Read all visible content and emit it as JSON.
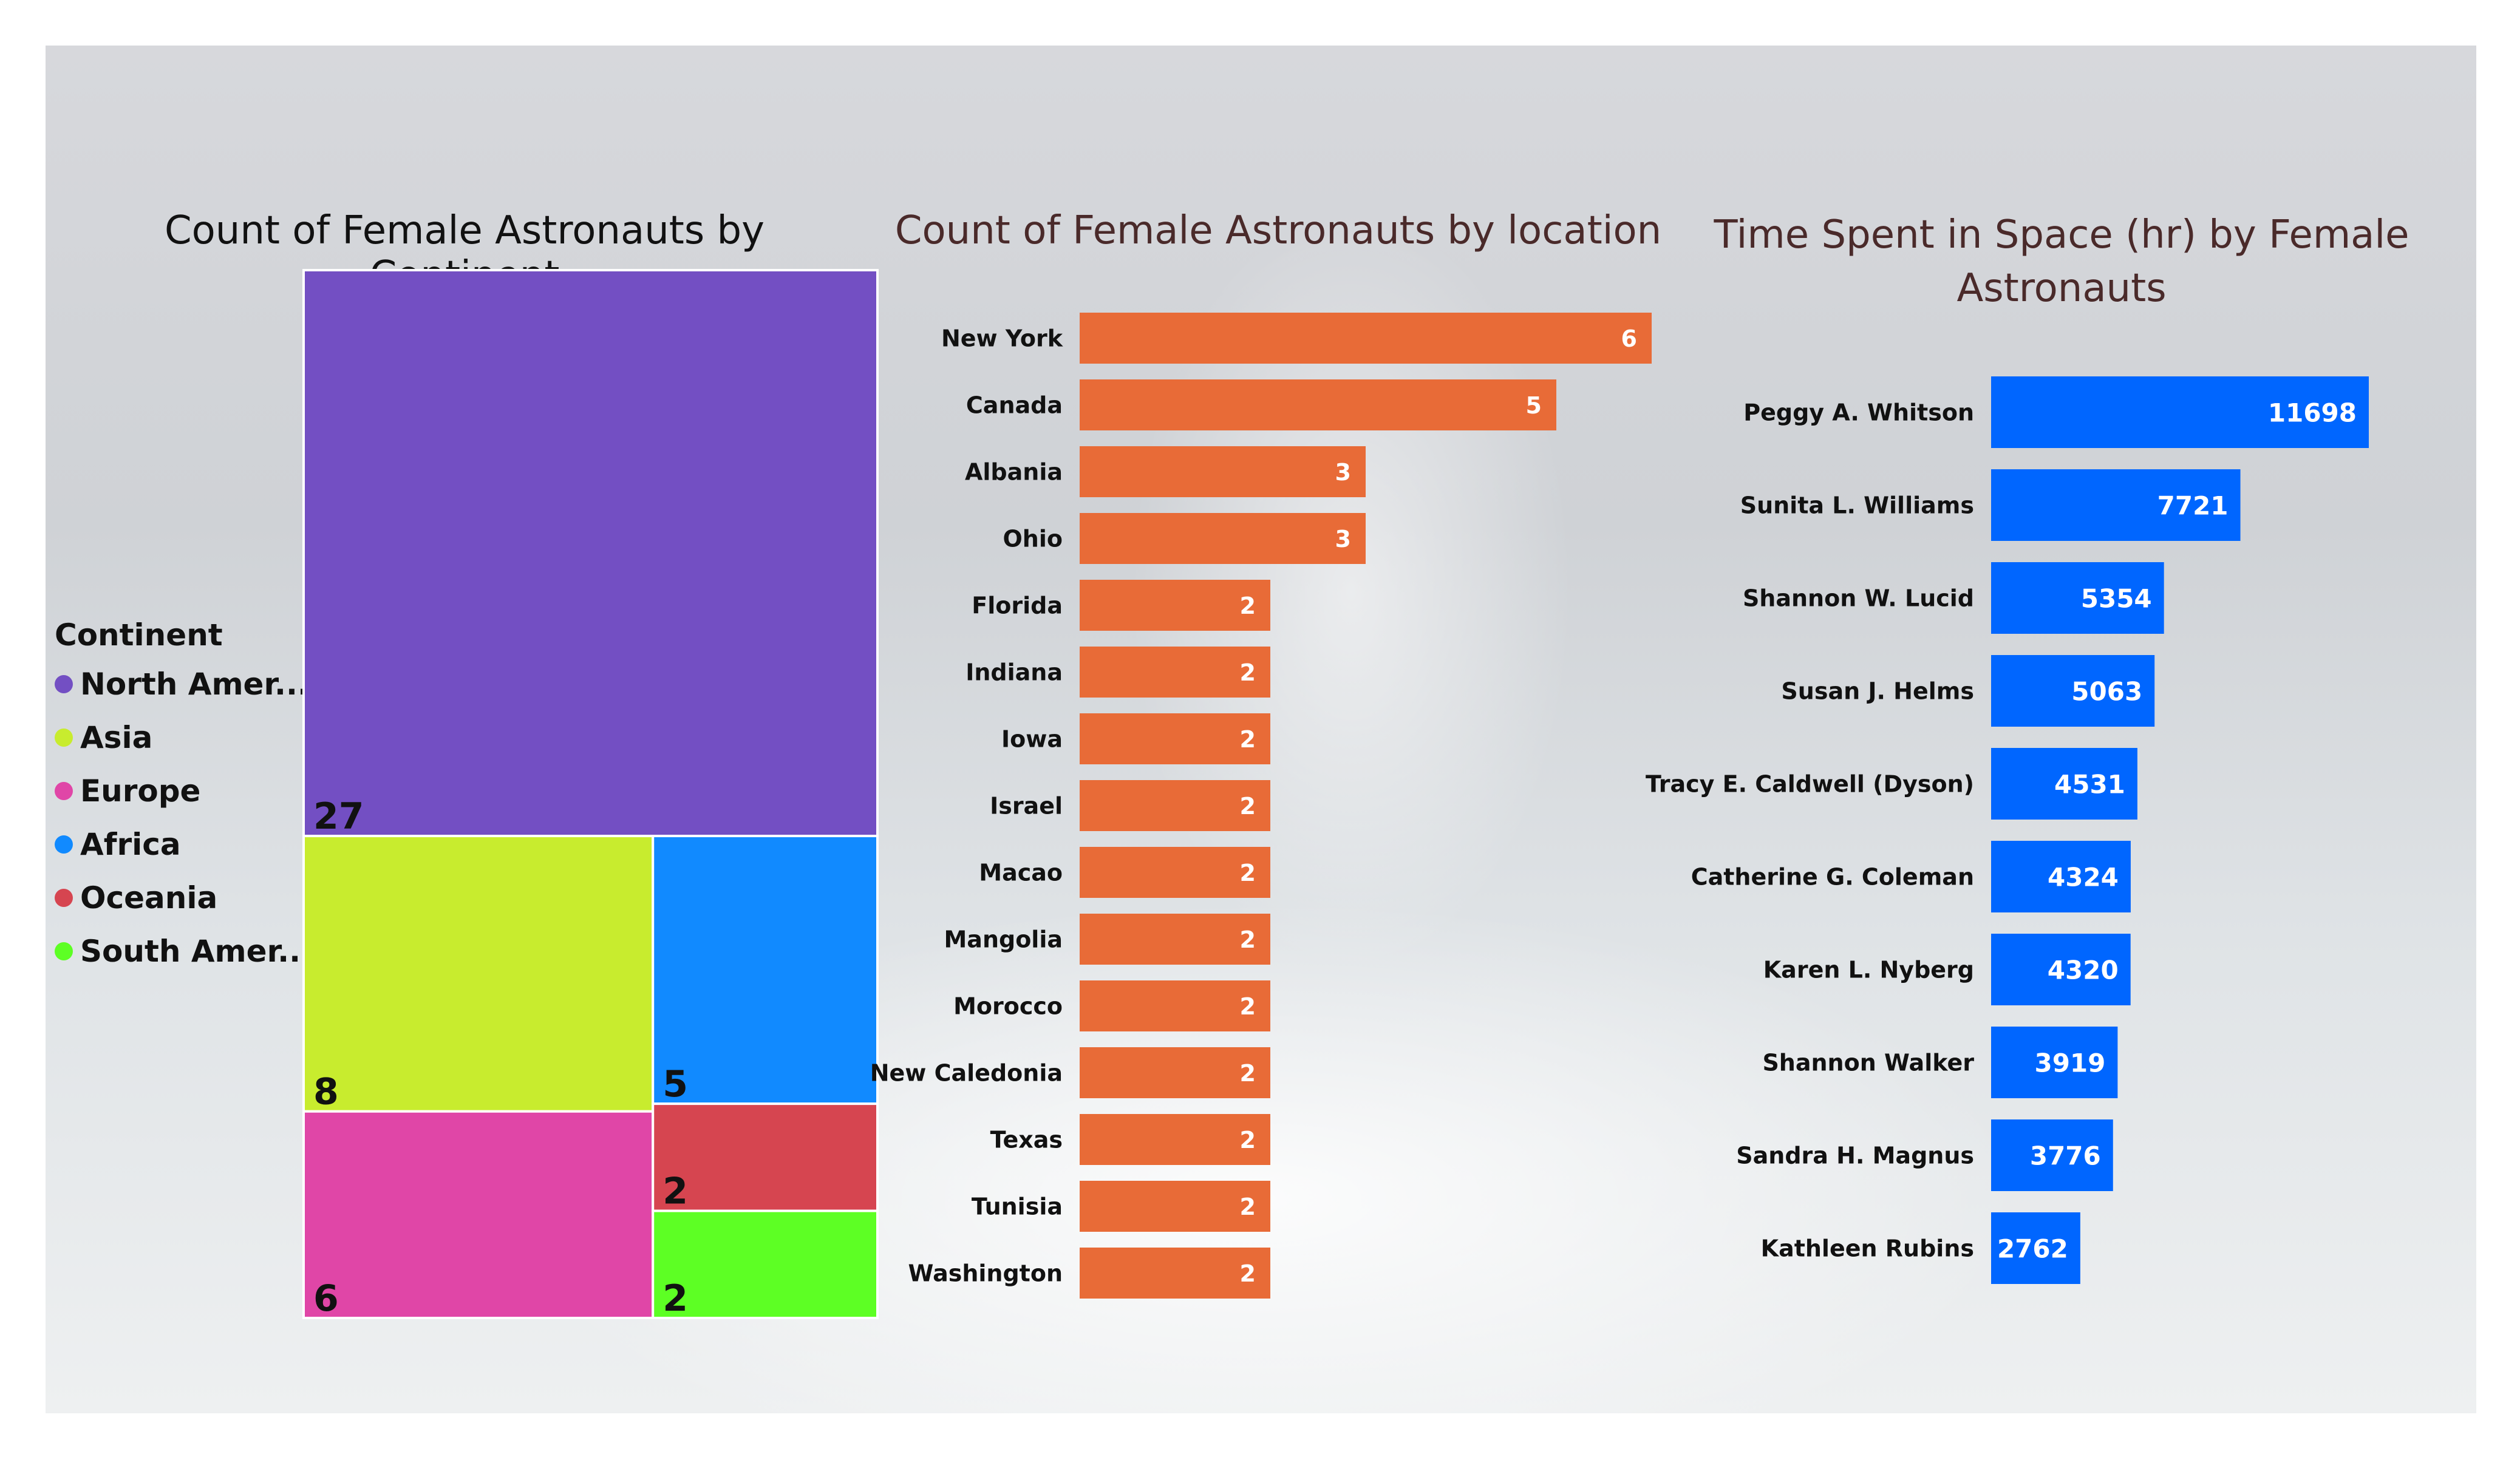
{
  "chart_data": [
    {
      "type": "treemap",
      "title": "Count of Female Astronauts by Continent",
      "legend": {
        "title": "Continent",
        "position": "left"
      },
      "categories": [
        "North Amer...",
        "Asia",
        "Europe",
        "Africa",
        "Oceania",
        "South Amer..."
      ],
      "values": [
        27,
        8,
        6,
        5,
        2,
        2
      ],
      "colors": [
        "#734FC3",
        "#C8EC2E",
        "#E046A7",
        "#118AFF",
        "#D64550",
        "#5DFF24"
      ]
    },
    {
      "type": "bar",
      "orientation": "horizontal",
      "title": "Count of Female Astronauts by location",
      "categories": [
        "New York",
        "Canada",
        "Albania",
        "Ohio",
        "Florida",
        "Indiana",
        "Iowa",
        "Israel",
        "Macao",
        "Mangolia",
        "Morocco",
        "New Caledonia",
        "Texas",
        "Tunisia",
        "Washington"
      ],
      "values": [
        6,
        5,
        3,
        3,
        2,
        2,
        2,
        2,
        2,
        2,
        2,
        2,
        2,
        2,
        2
      ],
      "xlim": [
        0,
        6
      ],
      "color": "#E86B37",
      "data_labels": true
    },
    {
      "type": "bar",
      "orientation": "horizontal",
      "title": "Time Spent in Space (hr) by Female Astronauts",
      "categories": [
        "Peggy A. Whitson",
        "Sunita L. Williams",
        "Shannon W. Lucid",
        "Susan J. Helms",
        "Tracy E. Caldwell (Dyson)",
        "Catherine G. Coleman",
        "Karen L. Nyberg",
        "Shannon Walker",
        "Sandra H. Magnus",
        "Kathleen Rubins"
      ],
      "values": [
        11698,
        7721,
        5354,
        5063,
        4531,
        4324,
        4320,
        3919,
        3776,
        2762
      ],
      "xlim": [
        0,
        11698
      ],
      "color": "#0066FF",
      "data_labels": true
    }
  ]
}
